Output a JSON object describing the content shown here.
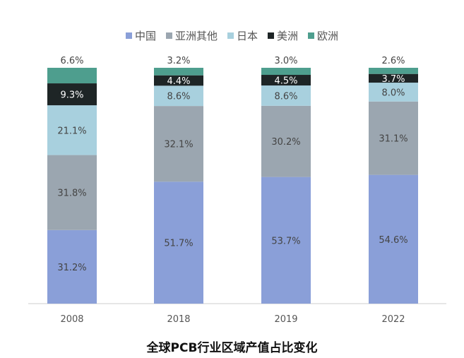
{
  "chart_data": {
    "type": "bar",
    "stacked": true,
    "title": "全球PCB行业区域产值占比变化",
    "categories": [
      "2008",
      "2018",
      "2019",
      "2022"
    ],
    "ylim": [
      0,
      100
    ],
    "grid": false,
    "legend_position": "top",
    "series": [
      {
        "name": "中国",
        "color": "#8A9FD8",
        "values": [
          31.2,
          51.7,
          53.7,
          54.6
        ]
      },
      {
        "name": "亚洲其他",
        "color": "#9BA6B0",
        "values": [
          31.8,
          32.1,
          30.2,
          31.1
        ]
      },
      {
        "name": "日本",
        "color": "#A8D0DE",
        "values": [
          21.1,
          8.6,
          8.6,
          8.0
        ]
      },
      {
        "name": "美洲",
        "color": "#1E2526",
        "values": [
          9.3,
          4.4,
          4.5,
          3.7
        ]
      },
      {
        "name": "欧洲",
        "color": "#4E9E8E",
        "values": [
          6.6,
          3.2,
          3.0,
          2.6
        ]
      }
    ]
  }
}
